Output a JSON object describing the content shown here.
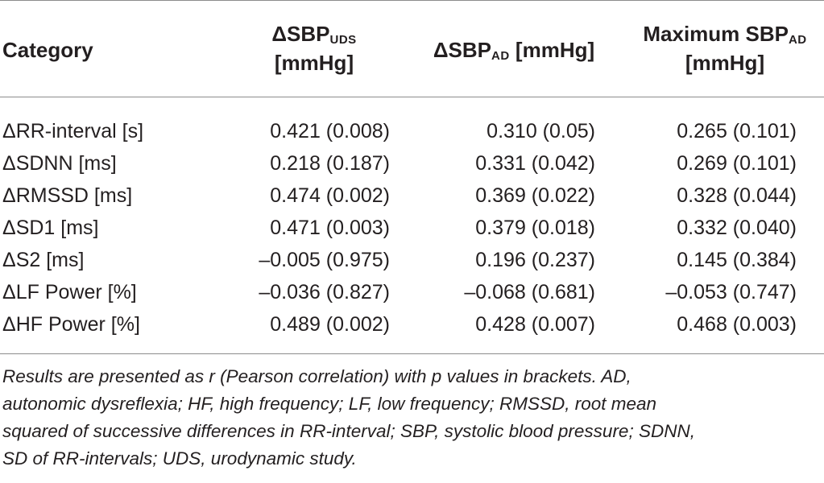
{
  "headers": {
    "category": "Category",
    "col1": {
      "main": "ΔSBP",
      "sub": "UDS",
      "unit": "[mmHg]"
    },
    "col2": {
      "main": "ΔSBP",
      "sub": "AD",
      "unit": "[mmHg]"
    },
    "col3": {
      "main": "Maximum SBP",
      "sub": "AD",
      "unit": "[mmHg]"
    }
  },
  "rows": [
    {
      "category": "ΔRR-interval [s]",
      "c1": "0.421 (0.008)",
      "c2": "0.310 (0.05)",
      "c3": "0.265 (0.101)"
    },
    {
      "category": "ΔSDNN [ms]",
      "c1": "0.218 (0.187)",
      "c2": "0.331 (0.042)",
      "c3": "0.269 (0.101)"
    },
    {
      "category": "ΔRMSSD [ms]",
      "c1": "0.474 (0.002)",
      "c2": "0.369 (0.022)",
      "c3": "0.328 (0.044)"
    },
    {
      "category": "ΔSD1 [ms]",
      "c1": "0.471 (0.003)",
      "c2": "0.379 (0.018)",
      "c3": "0.332 (0.040)"
    },
    {
      "category": "ΔS2 [ms]",
      "c1": "–0.005 (0.975)",
      "c2": "0.196 (0.237)",
      "c3": "0.145 (0.384)"
    },
    {
      "category": "ΔLF Power [%]",
      "c1": "–0.036 (0.827)",
      "c2": "–0.068 (0.681)",
      "c3": "–0.053 (0.747)"
    },
    {
      "category": "ΔHF Power [%]",
      "c1": "0.489 (0.002)",
      "c2": "0.428 (0.007)",
      "c3": "0.468 (0.003)"
    }
  ],
  "footnote": {
    "lines": [
      "Results are presented as r (Pearson correlation) with p values in brackets. AD,",
      "autonomic dysreflexia; HF, high frequency; LF, low frequency; RMSSD, root mean",
      "squared of successive differences in RR-interval; SBP, systolic blood pressure; SDNN,",
      "SD of RR-intervals; UDS, urodynamic study."
    ]
  }
}
